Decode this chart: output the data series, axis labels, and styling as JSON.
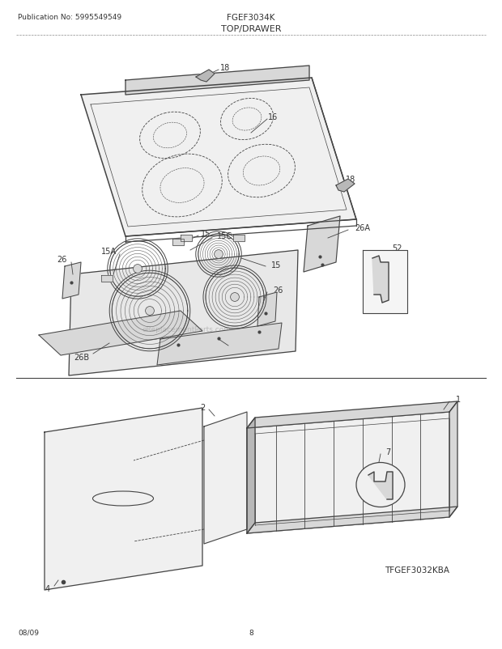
{
  "title": "TOP/DRAWER",
  "pub_no": "Publication No: 5995549549",
  "model": "FGEF3034K",
  "sub_model": "TFGEF3032KBA",
  "date": "08/09",
  "page": "8",
  "bg_color": "#ffffff",
  "line_color": "#444444",
  "text_color": "#333333",
  "fill_light": "#f0f0f0",
  "fill_mid": "#d8d8d8",
  "fill_dark": "#b8b8b8"
}
